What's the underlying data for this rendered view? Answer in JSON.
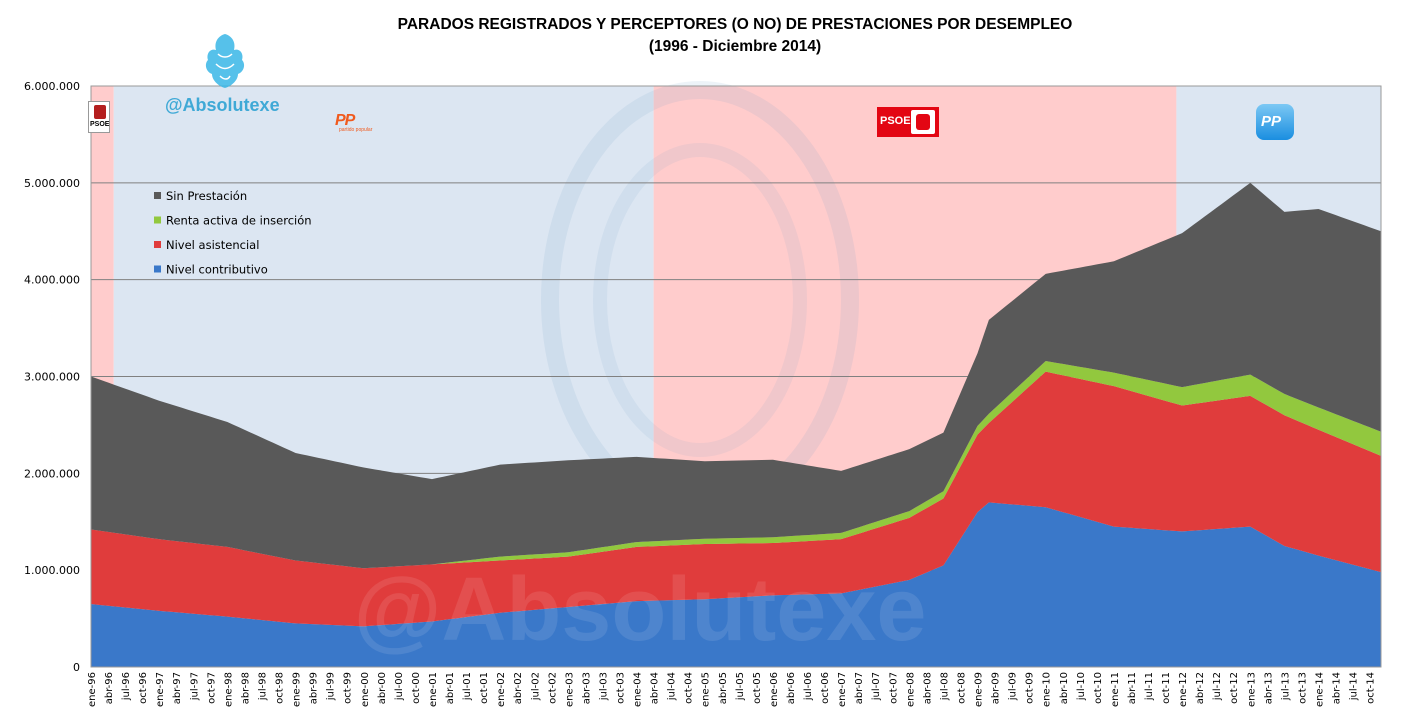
{
  "title_line1": "PARADOS REGISTRADOS Y PERCEPTORES (O NO) DE PRESTACIONES POR DESEMPLEO",
  "title_line2": "(1996 - Diciembre 2014)",
  "handle": "@Absolutexe",
  "watermark": "@Absolutexe",
  "logos": {
    "psoe_small": "PSOE",
    "pp_1": "PP",
    "pp_1_sub": "partido popular",
    "psoe_big": "PSOE",
    "pp_2": "PP"
  },
  "chart_data": {
    "type": "area",
    "stacked": true,
    "title": "PARADOS REGISTRADOS Y PERCEPTORES (O NO) DE PRESTACIONES POR DESEMPLEO (1996 - Diciembre 2014)",
    "ylim": [
      0,
      6000000
    ],
    "yticks": [
      0,
      1000000,
      2000000,
      3000000,
      4000000,
      5000000,
      6000000
    ],
    "ytick_labels": [
      "0",
      "1.000.000",
      "2.000.000",
      "3.000.000",
      "4.000.000",
      "5.000.000",
      "6.000.000"
    ],
    "grid": "horizontal",
    "legend_position": "top-left",
    "x_range": [
      "1996-01",
      "2014-12"
    ],
    "x_tick_step_months": 3,
    "xtick_labels": [
      "ene-96",
      "abr-96",
      "jul-96",
      "oct-96",
      "ene-97",
      "abr-97",
      "jul-97",
      "oct-97",
      "ene-98",
      "abr-98",
      "jul-98",
      "oct-98",
      "ene-99",
      "abr-99",
      "jul-99",
      "oct-99",
      "ene-00",
      "abr-00",
      "jul-00",
      "oct-00",
      "ene-01",
      "abr-01",
      "jul-01",
      "oct-01",
      "ene-02",
      "abr-02",
      "jul-02",
      "oct-02",
      "ene-03",
      "abr-03",
      "jul-03",
      "oct-03",
      "ene-04",
      "abr-04",
      "jul-04",
      "oct-04",
      "ene-05",
      "abr-05",
      "jul-05",
      "oct-05",
      "ene-06",
      "abr-06",
      "jul-06",
      "oct-06",
      "ene-07",
      "abr-07",
      "jul-07",
      "oct-07",
      "ene-08",
      "abr-08",
      "jul-08",
      "oct-08",
      "ene-09",
      "abr-09",
      "jul-09",
      "oct-09",
      "ene-10",
      "abr-10",
      "jul-10",
      "oct-10",
      "ene-11",
      "abr-11",
      "jul-11",
      "oct-11",
      "ene-12",
      "abr-12",
      "jul-12",
      "oct-12",
      "ene-13",
      "abr-13",
      "jul-13",
      "oct-13",
      "ene-14",
      "abr-14",
      "jul-14",
      "oct-14"
    ],
    "government_periods": [
      {
        "party": "PSOE",
        "start": "1996-01",
        "end": "1996-05",
        "color": "#ffcccc"
      },
      {
        "party": "PP",
        "start": "1996-05",
        "end": "2004-04",
        "color": "#dce6f2"
      },
      {
        "party": "PSOE",
        "start": "2004-04",
        "end": "2011-12",
        "color": "#ffcccc"
      },
      {
        "party": "PP",
        "start": "2011-12",
        "end": "2014-12",
        "color": "#dce6f2"
      }
    ],
    "series": [
      {
        "name": "Nivel contributivo",
        "color": "#3a78c9",
        "points": [
          [
            "1996-01",
            650000
          ],
          [
            "1997-01",
            580000
          ],
          [
            "1998-01",
            520000
          ],
          [
            "1999-01",
            450000
          ],
          [
            "2000-01",
            420000
          ],
          [
            "2001-01",
            470000
          ],
          [
            "2002-01",
            560000
          ],
          [
            "2003-01",
            620000
          ],
          [
            "2004-01",
            680000
          ],
          [
            "2005-01",
            700000
          ],
          [
            "2006-01",
            740000
          ],
          [
            "2007-01",
            760000
          ],
          [
            "2008-01",
            900000
          ],
          [
            "2008-07",
            1050000
          ],
          [
            "2009-01",
            1600000
          ],
          [
            "2009-03",
            1700000
          ],
          [
            "2010-01",
            1650000
          ],
          [
            "2011-01",
            1450000
          ],
          [
            "2012-01",
            1400000
          ],
          [
            "2013-01",
            1450000
          ],
          [
            "2013-07",
            1250000
          ],
          [
            "2014-01",
            1150000
          ],
          [
            "2014-12",
            980000
          ]
        ]
      },
      {
        "name": "Nivel asistencial",
        "color": "#e03c3c",
        "points": [
          [
            "1996-01",
            770000
          ],
          [
            "1997-01",
            740000
          ],
          [
            "1998-01",
            720000
          ],
          [
            "1999-01",
            650000
          ],
          [
            "2000-01",
            600000
          ],
          [
            "2001-01",
            590000
          ],
          [
            "2002-01",
            540000
          ],
          [
            "2003-01",
            520000
          ],
          [
            "2004-01",
            560000
          ],
          [
            "2005-01",
            570000
          ],
          [
            "2006-01",
            540000
          ],
          [
            "2007-01",
            560000
          ],
          [
            "2008-01",
            640000
          ],
          [
            "2008-07",
            690000
          ],
          [
            "2009-01",
            800000
          ],
          [
            "2009-03",
            820000
          ],
          [
            "2010-01",
            1400000
          ],
          [
            "2011-01",
            1450000
          ],
          [
            "2012-01",
            1300000
          ],
          [
            "2013-01",
            1350000
          ],
          [
            "2013-07",
            1350000
          ],
          [
            "2014-01",
            1300000
          ],
          [
            "2014-12",
            1200000
          ]
        ]
      },
      {
        "name": "Renta activa de inserción",
        "color": "#92c83e",
        "points": [
          [
            "1996-01",
            0
          ],
          [
            "1997-01",
            0
          ],
          [
            "1998-01",
            0
          ],
          [
            "1999-01",
            0
          ],
          [
            "2000-01",
            0
          ],
          [
            "2001-01",
            0
          ],
          [
            "2002-01",
            40000
          ],
          [
            "2003-01",
            45000
          ],
          [
            "2004-01",
            50000
          ],
          [
            "2005-01",
            55000
          ],
          [
            "2006-01",
            60000
          ],
          [
            "2007-01",
            65000
          ],
          [
            "2008-01",
            70000
          ],
          [
            "2008-07",
            75000
          ],
          [
            "2009-01",
            90000
          ],
          [
            "2009-03",
            95000
          ],
          [
            "2010-01",
            110000
          ],
          [
            "2011-01",
            140000
          ],
          [
            "2012-01",
            190000
          ],
          [
            "2013-01",
            220000
          ],
          [
            "2013-07",
            220000
          ],
          [
            "2014-01",
            230000
          ],
          [
            "2014-12",
            250000
          ]
        ]
      },
      {
        "name": "Sin Prestación",
        "color": "#595959",
        "points": [
          [
            "1996-01",
            1580000
          ],
          [
            "1997-01",
            1430000
          ],
          [
            "1998-01",
            1290000
          ],
          [
            "1999-01",
            1110000
          ],
          [
            "2000-01",
            1040000
          ],
          [
            "2001-01",
            880000
          ],
          [
            "2002-01",
            950000
          ],
          [
            "2003-01",
            950000
          ],
          [
            "2004-01",
            880000
          ],
          [
            "2005-01",
            800000
          ],
          [
            "2006-01",
            800000
          ],
          [
            "2007-01",
            640000
          ],
          [
            "2008-01",
            640000
          ],
          [
            "2008-07",
            605000
          ],
          [
            "2009-01",
            750000
          ],
          [
            "2009-03",
            970000
          ],
          [
            "2010-01",
            900000
          ],
          [
            "2011-01",
            1150000
          ],
          [
            "2012-01",
            1590000
          ],
          [
            "2013-01",
            1980000
          ],
          [
            "2013-07",
            1880000
          ],
          [
            "2014-01",
            2050000
          ],
          [
            "2014-12",
            2070000
          ]
        ]
      }
    ]
  }
}
